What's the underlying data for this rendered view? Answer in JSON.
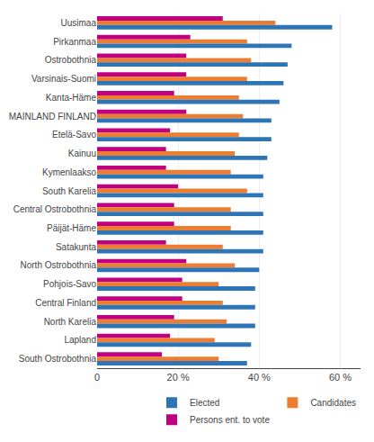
{
  "chart_data": {
    "type": "bar",
    "orientation": "horizontal",
    "categories": [
      "Uusimaa",
      "Pirkanmaa",
      "Ostrobothnia",
      "Varsinais-Suomi",
      "Kanta-Häme",
      "MAINLAND FINLAND",
      "Etelä-Savo",
      "Kainuu",
      "Kymenlaakso",
      "South Karelia",
      "Central Ostrobothnia",
      "Päijät-Häme",
      "Satakunta",
      "North Ostrobothnia",
      "Pohjois-Savo",
      "Central Finland",
      "North Karelia",
      "Lapland",
      "South Ostrobothnia"
    ],
    "series": [
      {
        "name": "Elected",
        "color": "#2e75b6",
        "values": [
          58,
          48,
          47,
          46,
          45,
          43,
          43,
          42,
          41,
          41,
          41,
          41,
          41,
          40,
          39,
          39,
          39,
          38,
          37
        ]
      },
      {
        "name": "Candidates",
        "color": "#ed7d31",
        "values": [
          44,
          37,
          38,
          37,
          35,
          36,
          35,
          34,
          33,
          37,
          33,
          33,
          31,
          34,
          30,
          31,
          32,
          29,
          30
        ]
      },
      {
        "name": "Persons ent. to vote",
        "color": "#c00080",
        "values": [
          31,
          23,
          22,
          22,
          19,
          22,
          18,
          17,
          17,
          20,
          19,
          19,
          17,
          22,
          21,
          21,
          19,
          18,
          16
        ]
      }
    ],
    "xlim": [
      0,
      65
    ],
    "xticks": [
      0,
      {
        "value": 20,
        "label": "20 %"
      },
      {
        "value": 40,
        "label": "40 %"
      },
      {
        "value": 60,
        "label": "60 %"
      }
    ],
    "grid": true,
    "legend": "lower right"
  }
}
